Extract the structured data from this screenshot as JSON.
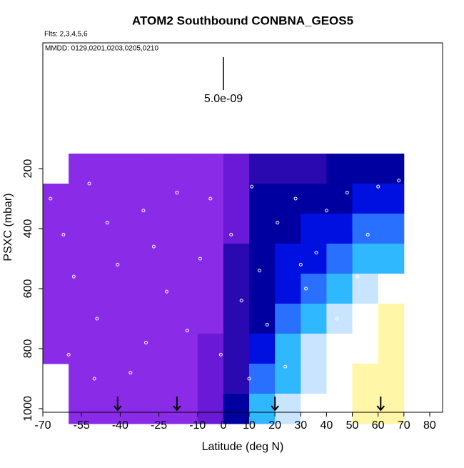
{
  "chart_data": {
    "type": "heatmap",
    "title": "ATOM2 Southbound CONBNA_GEOS5",
    "subtitle": "Flts: 2,3,4,5,6",
    "annotation": "MMDD: 0129,0201,0203,0205,0210",
    "scale_label": "5.0e-09",
    "x_label": "Latitude (deg N)",
    "y_label": "PSXC (mbar)",
    "xlim": [
      -70,
      85
    ],
    "ylim": [
      1012,
      -219
    ],
    "xticks": [
      -70,
      -55,
      -40,
      -25,
      -10,
      0,
      10,
      20,
      30,
      40,
      50,
      60,
      70,
      80
    ],
    "yticks": [
      200,
      400,
      600,
      800,
      1000
    ],
    "x_edges": [
      -70,
      -60,
      -50,
      -40,
      -30,
      -20,
      -10,
      0,
      10,
      20,
      30,
      40,
      50,
      60,
      70
    ],
    "y_edges": [
      150,
      250,
      350,
      450,
      550,
      650,
      750,
      850,
      950,
      1050
    ],
    "colorscale": [
      "#9a3cf2",
      "#8a2be8",
      "#6a1ad6",
      "#2a0ab0",
      "#0000a0",
      "#0010e0",
      "#2a70ff",
      "#30b8ff",
      "#c8e4ff",
      "#ffffff",
      "#fff6a8"
    ],
    "z": [
      [
        null,
        1,
        1,
        1,
        1,
        1,
        1,
        2,
        3,
        3,
        3,
        4,
        4,
        4
      ],
      [
        1,
        1,
        1,
        1,
        1,
        1,
        1,
        2,
        4,
        4,
        4,
        4,
        5,
        5
      ],
      [
        1,
        1,
        1,
        1,
        1,
        1,
        1,
        2,
        4,
        4,
        5,
        5,
        6,
        6
      ],
      [
        1,
        1,
        1,
        1,
        1,
        1,
        1,
        3,
        4,
        5,
        5,
        6,
        7,
        7
      ],
      [
        1,
        1,
        1,
        1,
        1,
        1,
        1,
        3,
        4,
        5,
        6,
        7,
        8,
        9
      ],
      [
        1,
        1,
        1,
        1,
        1,
        1,
        1,
        3,
        4,
        6,
        7,
        8,
        9,
        10
      ],
      [
        1,
        1,
        1,
        1,
        1,
        1,
        2,
        3,
        5,
        7,
        8,
        9,
        9,
        10
      ],
      [
        null,
        1,
        1,
        1,
        1,
        1,
        2,
        3,
        6,
        7,
        8,
        9,
        10,
        10
      ],
      [
        null,
        1,
        1,
        1,
        1,
        1,
        2,
        4,
        7,
        8,
        9,
        9,
        10,
        10
      ]
    ],
    "points_x": [
      -67,
      -62,
      -58,
      -52,
      -49,
      -45,
      -41,
      -36,
      -31,
      -27,
      -22,
      -18,
      -14,
      -9,
      -5,
      -1,
      3,
      7,
      11,
      14,
      17,
      21,
      24,
      28,
      32,
      36,
      40,
      44,
      48,
      52,
      56,
      60,
      64,
      68,
      -50,
      -30,
      10,
      30,
      50,
      -60
    ],
    "points_y": [
      300,
      420,
      560,
      250,
      700,
      380,
      520,
      880,
      340,
      460,
      610,
      280,
      740,
      500,
      300,
      820,
      420,
      640,
      260,
      540,
      720,
      380,
      860,
      300,
      600,
      480,
      340,
      700,
      280,
      560,
      420,
      260,
      620,
      240,
      900,
      780,
      900,
      520,
      760,
      820
    ],
    "arrows": [
      -41,
      -18,
      20,
      61
    ]
  }
}
